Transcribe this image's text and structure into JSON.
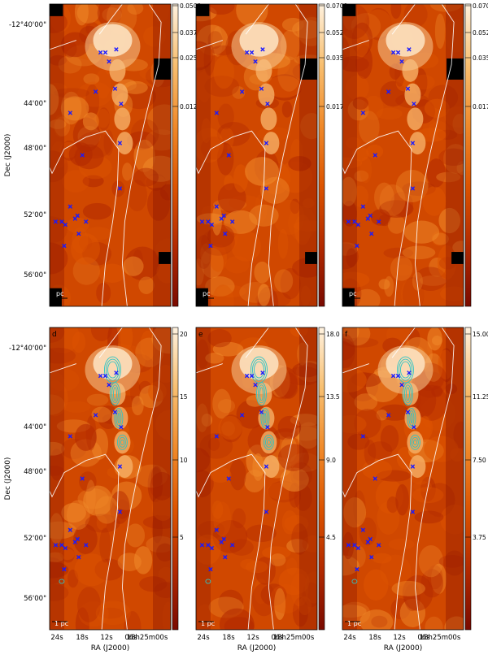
{
  "figure": {
    "y_axis_title": "Dec (J2000)",
    "x_axis_title": "RA (J2000)",
    "dec_ticks": [
      "-12°40'00\"",
      "44'00\"",
      "48'00\"",
      "52'00\"",
      "56'00\""
    ],
    "ra_ticks": [
      "24s",
      "18s",
      "12s",
      "06s",
      "18h25m00s"
    ],
    "scalebar_top": "pc",
    "scalebar_bottom": "1 pc",
    "colormap": [
      "#7a0a00",
      "#b32a00",
      "#dd5400",
      "#f08a2a",
      "#f8bf70",
      "#fff2df"
    ]
  },
  "panels": [
    {
      "row": 0,
      "col": 0,
      "letter": "",
      "colorbar_ticks": [
        "0.0500",
        "0.0375",
        "0.0250",
        "0.0125"
      ],
      "contours": false
    },
    {
      "row": 0,
      "col": 1,
      "letter": "",
      "colorbar_ticks": [
        "0.0700",
        "0.0525",
        "0.0350",
        "0.0175"
      ],
      "contours": false
    },
    {
      "row": 0,
      "col": 2,
      "letter": "",
      "colorbar_ticks": [
        "0.0700",
        "0.0525",
        "0.0350",
        "0.0175"
      ],
      "contours": false
    },
    {
      "row": 1,
      "col": 0,
      "letter": "d",
      "colorbar_ticks": [
        "20",
        "15",
        "10",
        "5"
      ],
      "contours": true
    },
    {
      "row": 1,
      "col": 1,
      "letter": "e",
      "colorbar_ticks": [
        "18.0",
        "13.5",
        "9.0",
        "4.5"
      ],
      "contours": true
    },
    {
      "row": 1,
      "col": 2,
      "letter": "f",
      "colorbar_ticks": [
        "15.00",
        "11.25",
        "7.50",
        "3.75"
      ],
      "contours": true
    }
  ]
}
